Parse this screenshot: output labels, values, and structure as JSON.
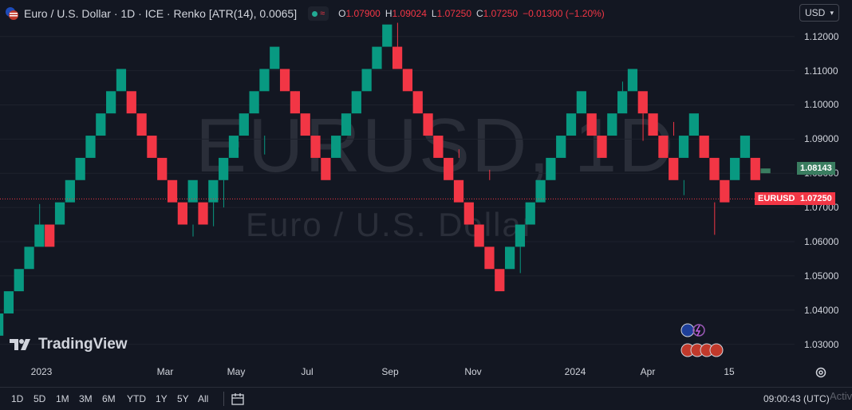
{
  "header": {
    "title": "Euro / U.S. Dollar · 1D · ICE · Renko [ATR(14), 0.0065]",
    "ohlc": [
      {
        "key": "O",
        "value": "1.07900"
      },
      {
        "key": "H",
        "value": "1.09024"
      },
      {
        "key": "L",
        "value": "1.07250"
      },
      {
        "key": "C",
        "value": "1.07250"
      },
      {
        "key": "",
        "value": "−0.01300 (−1.20%)"
      }
    ]
  },
  "currency_select": {
    "value": "USD"
  },
  "watermark": {
    "symbol": "EURUSD, 1D",
    "name": "Euro / U.S. Dollar"
  },
  "brand": {
    "label": "TradingView"
  },
  "price_axis": {
    "ticks": [
      "1.12000",
      "1.11000",
      "1.10000",
      "1.09000",
      "1.08000",
      "1.07000",
      "1.06000",
      "1.05000",
      "1.04000",
      "1.03000"
    ],
    "ghost_price": "1.08143",
    "last_symbol": "EURUSD",
    "last_price": "1.07250"
  },
  "time_axis": {
    "labels": [
      "2023",
      "Mar",
      "May",
      "Jul",
      "Sep",
      "Nov",
      "2024",
      "Apr",
      "15"
    ]
  },
  "timeframes": [
    "1D",
    "5D",
    "1M",
    "3M",
    "6M",
    "YTD",
    "1Y",
    "5Y",
    "All"
  ],
  "clock": "09:00:43 (UTC)",
  "overlay_text": "Activa",
  "colors": {
    "up": "#089981",
    "down": "#f23645",
    "background": "#131722",
    "ghost": "#3a7d60"
  },
  "chart_data": {
    "type": "renko",
    "box_size": 0.0065,
    "ylim": [
      1.025,
      1.126
    ],
    "bricks": [
      {
        "d": "up",
        "lo": 1.0325
      },
      {
        "d": "up",
        "lo": 1.039
      },
      {
        "d": "up",
        "lo": 1.0455
      },
      {
        "d": "up",
        "lo": 1.052
      },
      {
        "d": "up",
        "lo": 1.0585
      },
      {
        "d": "down",
        "lo": 1.0585
      },
      {
        "d": "up",
        "lo": 1.065
      },
      {
        "d": "up",
        "lo": 1.0715
      },
      {
        "d": "up",
        "lo": 1.078
      },
      {
        "d": "up",
        "lo": 1.0845
      },
      {
        "d": "up",
        "lo": 1.091
      },
      {
        "d": "up",
        "lo": 1.0975
      },
      {
        "d": "up",
        "lo": 1.104
      },
      {
        "d": "down",
        "lo": 1.0975
      },
      {
        "d": "down",
        "lo": 1.091
      },
      {
        "d": "down",
        "lo": 1.0845
      },
      {
        "d": "down",
        "lo": 1.078
      },
      {
        "d": "down",
        "lo": 1.0715
      },
      {
        "d": "down",
        "lo": 1.065
      },
      {
        "d": "up",
        "lo": 1.0715
      },
      {
        "d": "down",
        "lo": 1.065
      },
      {
        "d": "up",
        "lo": 1.0715
      },
      {
        "d": "up",
        "lo": 1.078
      },
      {
        "d": "up",
        "lo": 1.0845
      },
      {
        "d": "up",
        "lo": 1.091
      },
      {
        "d": "up",
        "lo": 1.0975
      },
      {
        "d": "up",
        "lo": 1.104
      },
      {
        "d": "up",
        "lo": 1.1105
      },
      {
        "d": "down",
        "lo": 1.104
      },
      {
        "d": "down",
        "lo": 1.0975
      },
      {
        "d": "down",
        "lo": 1.091
      },
      {
        "d": "down",
        "lo": 1.0845
      },
      {
        "d": "down",
        "lo": 1.078
      },
      {
        "d": "up",
        "lo": 1.0845
      },
      {
        "d": "up",
        "lo": 1.091
      },
      {
        "d": "up",
        "lo": 1.0975
      },
      {
        "d": "up",
        "lo": 1.104
      },
      {
        "d": "up",
        "lo": 1.1105
      },
      {
        "d": "up",
        "lo": 1.117
      },
      {
        "d": "down",
        "lo": 1.1105
      },
      {
        "d": "down",
        "lo": 1.104
      },
      {
        "d": "down",
        "lo": 1.0975
      },
      {
        "d": "down",
        "lo": 1.091
      },
      {
        "d": "down",
        "lo": 1.0845
      },
      {
        "d": "down",
        "lo": 1.078
      },
      {
        "d": "down",
        "lo": 1.0715
      },
      {
        "d": "down",
        "lo": 1.065
      },
      {
        "d": "down",
        "lo": 1.0585
      },
      {
        "d": "down",
        "lo": 1.052
      },
      {
        "d": "down",
        "lo": 1.0455
      },
      {
        "d": "up",
        "lo": 1.052
      },
      {
        "d": "up",
        "lo": 1.0585
      },
      {
        "d": "up",
        "lo": 1.065
      },
      {
        "d": "up",
        "lo": 1.0715
      },
      {
        "d": "up",
        "lo": 1.078
      },
      {
        "d": "up",
        "lo": 1.0845
      },
      {
        "d": "up",
        "lo": 1.091
      },
      {
        "d": "up",
        "lo": 1.0975
      },
      {
        "d": "down",
        "lo": 1.091
      },
      {
        "d": "down",
        "lo": 1.0845
      },
      {
        "d": "up",
        "lo": 1.091
      },
      {
        "d": "up",
        "lo": 1.0975
      },
      {
        "d": "up",
        "lo": 1.104
      },
      {
        "d": "down",
        "lo": 1.0975
      },
      {
        "d": "down",
        "lo": 1.091
      },
      {
        "d": "down",
        "lo": 1.0845
      },
      {
        "d": "down",
        "lo": 1.078
      },
      {
        "d": "up",
        "lo": 1.0845
      },
      {
        "d": "up",
        "lo": 1.091
      },
      {
        "d": "down",
        "lo": 1.0845
      },
      {
        "d": "down",
        "lo": 1.078
      },
      {
        "d": "down",
        "lo": 1.0715
      },
      {
        "d": "up",
        "lo": 1.078
      },
      {
        "d": "up",
        "lo": 1.0845
      },
      {
        "d": "down",
        "lo": 1.078
      }
    ],
    "ghost_brick": {
      "lo": 1.08,
      "hi": 1.0814
    },
    "last_price": 1.0725
  }
}
